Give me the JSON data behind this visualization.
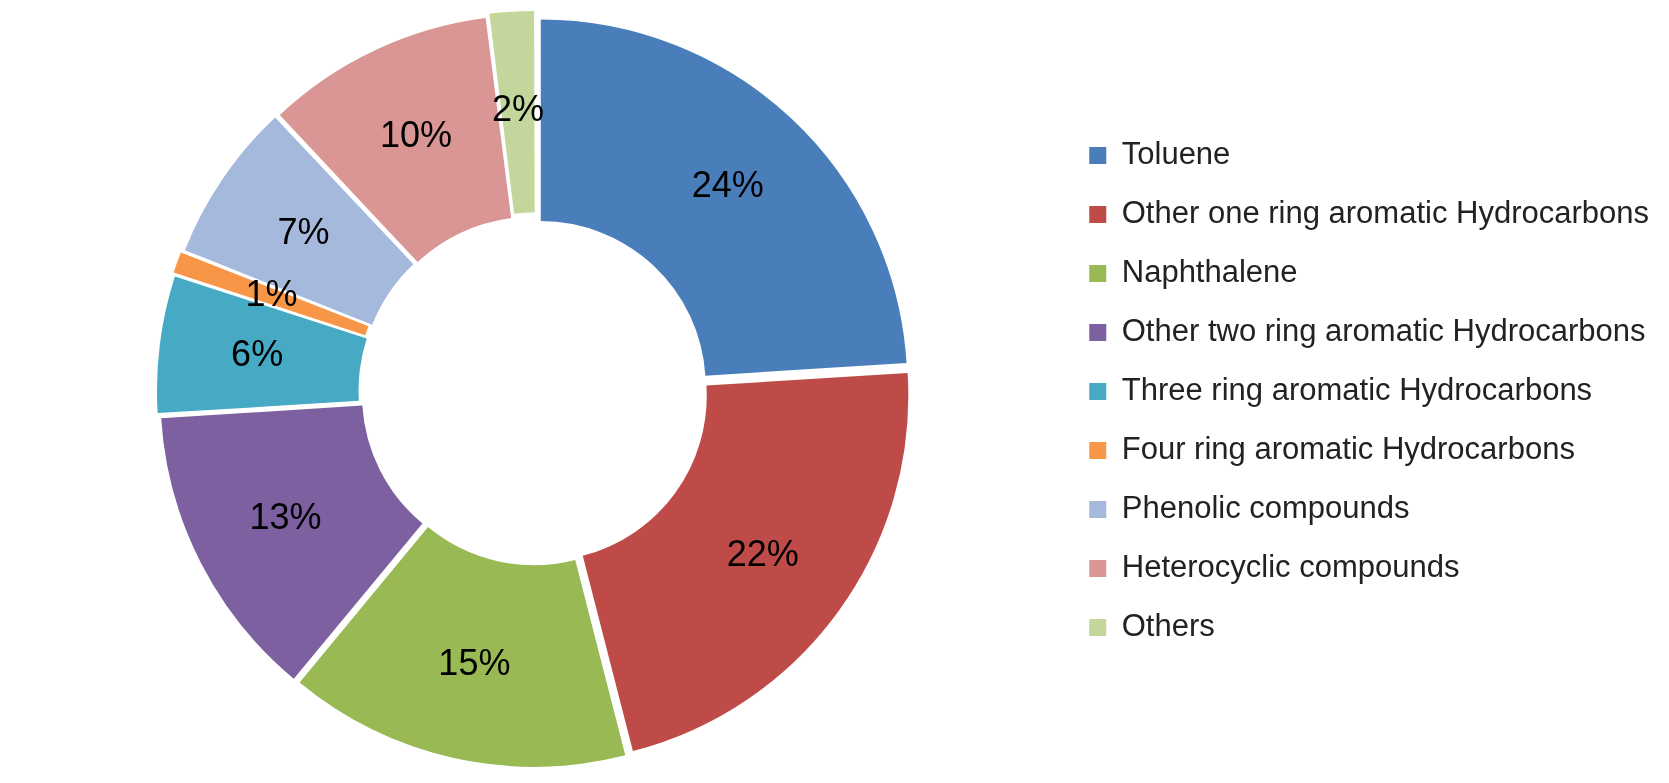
{
  "chart_data": {
    "type": "donut",
    "categories": [
      "Toluene",
      "Other one ring aromatic Hydrocarbons",
      "Naphthalene",
      "Other two ring aromatic Hydrocarbons",
      "Three ring aromatic Hydrocarbons",
      "Four ring aromatic Hydrocarbons",
      "Phenolic compounds",
      "Heterocyclic compounds",
      "Others"
    ],
    "values": [
      24,
      22,
      15,
      13,
      6,
      1,
      7,
      10,
      2
    ],
    "colors": [
      "#4a7ebb",
      "#be4b48",
      "#98b954",
      "#7d60a0",
      "#46aac5",
      "#f79646",
      "#a5b9dc",
      "#d99694",
      "#c3d69b"
    ],
    "value_labels": [
      "24%",
      "22%",
      "15%",
      "13%",
      "6%",
      "1%",
      "7%",
      "10%",
      "2%"
    ],
    "legend": "right"
  }
}
